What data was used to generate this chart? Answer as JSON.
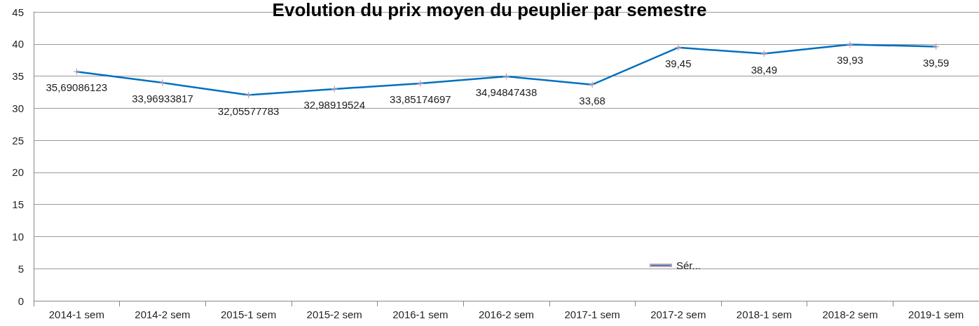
{
  "chart_data": {
    "type": "line",
    "title": "Evolution du prix moyen du peuplier par semestre",
    "categories": [
      "2014-1 sem",
      "2014-2 sem",
      "2015-1 sem",
      "2015-2 sem",
      "2016-1 sem",
      "2016-2 sem",
      "2017-1 sem",
      "2017-2 sem",
      "2018-1 sem",
      "2018-2 sem",
      "2019-1 sem"
    ],
    "series": [
      {
        "name": "Sér...",
        "color": "#0070c0",
        "values": [
          35.69086123,
          33.96933817,
          32.05577783,
          32.98919524,
          33.85174697,
          34.94847438,
          33.68,
          39.45,
          38.49,
          39.93,
          39.59
        ],
        "value_labels": [
          "35,69086123",
          "33,96933817",
          "32,05577783",
          "32,98919524",
          "33,85174697",
          "34,94847438",
          "33,68",
          "39,45",
          "38,49",
          "39,93",
          "39,59"
        ]
      }
    ],
    "ylim": [
      0,
      45
    ],
    "yticks": [
      0,
      5,
      10,
      15,
      20,
      25,
      30,
      35,
      40,
      45
    ],
    "grid": "y",
    "legend": "bottom",
    "marker": "cross",
    "line_style": "solid"
  }
}
